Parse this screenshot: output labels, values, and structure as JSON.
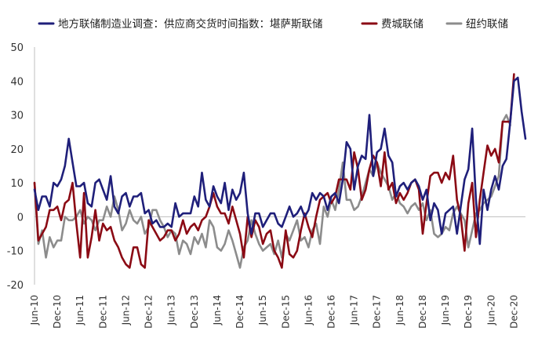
{
  "chart_data": {
    "type": "line",
    "title": "",
    "xlabel": "",
    "ylabel": "",
    "ylim": [
      -20,
      50
    ],
    "yticks": [
      -20,
      -10,
      0,
      10,
      20,
      30,
      40,
      50
    ],
    "x_start": "2010-06",
    "x_tick_labels": [
      "Jun-10",
      "Dec-10",
      "Jun-11",
      "Dec-11",
      "Jun-12",
      "Dec-12",
      "Jun-13",
      "Dec-13",
      "Jun-14",
      "Dec-14",
      "Jun-15",
      "Dec-15",
      "Jun-16",
      "Dec-16",
      "Jun-17",
      "Dec-17",
      "Jun-18",
      "Dec-18",
      "Jun-19",
      "Dec-19",
      "Jun-20",
      "Dec-20"
    ],
    "legend_position": "top",
    "grid": false,
    "series": [
      {
        "name": "地方联储制造业调查：供应商交货时间指数：堪萨斯联储",
        "color": "#1f1f7a",
        "values": [
          8,
          2,
          6,
          6,
          3,
          10,
          9,
          11,
          15,
          23,
          16,
          9,
          9,
          10,
          4,
          3,
          10,
          11,
          8,
          5,
          12,
          3,
          1,
          6,
          7,
          3,
          6,
          6,
          7,
          1,
          2,
          -2,
          -1,
          -3,
          -3,
          -2,
          -3,
          4,
          0,
          1,
          1,
          1,
          6,
          3,
          13,
          5,
          3,
          9,
          6,
          4,
          10,
          2,
          8,
          5,
          7,
          13,
          1,
          -5,
          1,
          1,
          -3,
          -1,
          1,
          1,
          -2,
          -3,
          0,
          3,
          0,
          1,
          3,
          0,
          2,
          7,
          5,
          7,
          6,
          2,
          6,
          7,
          4,
          11,
          22,
          20,
          8,
          15,
          18,
          17,
          30,
          12,
          19,
          20,
          26,
          18,
          16,
          6,
          9,
          10,
          8,
          10,
          11,
          9,
          5,
          8,
          -1,
          4,
          2,
          -5,
          1,
          2,
          3,
          -5,
          3,
          11,
          14,
          26,
          5,
          -8,
          8,
          2,
          8,
          12,
          8,
          15,
          17,
          28,
          40,
          41,
          31,
          23
        ]
      },
      {
        "name": "费城联储",
        "color": "#8b0a14",
        "values": [
          10,
          -7,
          -5,
          -3,
          2,
          2,
          3,
          -1,
          4,
          5,
          10,
          -2,
          -12,
          7,
          -12,
          -6,
          2,
          -7,
          -2,
          -4,
          -3,
          -7,
          -9,
          -12,
          -14,
          -15,
          -9,
          -9,
          -14,
          -15,
          -1,
          -3,
          -5,
          -7,
          -6,
          -4,
          -4,
          -7,
          -5,
          -1,
          -5,
          -3,
          -2,
          -4,
          -1,
          0,
          3,
          7,
          3,
          1,
          1,
          -2,
          3,
          -1,
          -5,
          -12,
          0,
          -6,
          -1,
          -3,
          -8,
          -5,
          -4,
          -10,
          -12,
          -15,
          -4,
          -11,
          -12,
          -10,
          -4,
          1,
          -3,
          -6,
          0,
          5,
          6,
          7,
          4,
          6,
          11,
          11,
          11,
          8,
          19,
          14,
          5,
          8,
          14,
          18,
          16,
          9,
          19,
          8,
          10,
          4,
          7,
          5,
          7,
          10,
          11,
          8,
          -5,
          4,
          12,
          13,
          13,
          10,
          13,
          11,
          18,
          5,
          0,
          -10,
          4,
          10,
          -6,
          5,
          13,
          21,
          18,
          20,
          16,
          28,
          28,
          28,
          42
        ]
      },
      {
        "name": "纽约联储",
        "color": "#8c8c8c",
        "values": [
          10,
          -8,
          -4,
          -12,
          -6,
          -9,
          -7,
          -7,
          0,
          -1,
          -1,
          0,
          2,
          -2,
          0,
          -1,
          -4,
          -1,
          -1,
          3,
          0,
          6,
          2,
          -4,
          -2,
          2,
          -1,
          -2,
          0,
          -5,
          -3,
          2,
          2,
          -1,
          -3,
          -6,
          -4,
          -5,
          -11,
          -7,
          -8,
          -11,
          -6,
          -8,
          -5,
          -9,
          -1,
          -3,
          -9,
          -10,
          -8,
          -4,
          -7,
          -11,
          -15,
          -9,
          -7,
          -1,
          -5,
          -8,
          -10,
          -9,
          -8,
          -11,
          -7,
          -12,
          -5,
          -7,
          -4,
          -1,
          -7,
          -6,
          -9,
          -4,
          -2,
          -8,
          3,
          0,
          5,
          2,
          8,
          16,
          5,
          5,
          2,
          3,
          6,
          10,
          14,
          12,
          16,
          13,
          11,
          9,
          5,
          7,
          4,
          3,
          1,
          3,
          4,
          2,
          4,
          -1,
          2,
          -5,
          -6,
          -5,
          -3,
          -4,
          1,
          3,
          1,
          -1,
          -9,
          -4,
          1,
          2,
          4,
          5,
          6,
          9,
          12,
          28,
          30,
          27
        ]
      }
    ]
  }
}
